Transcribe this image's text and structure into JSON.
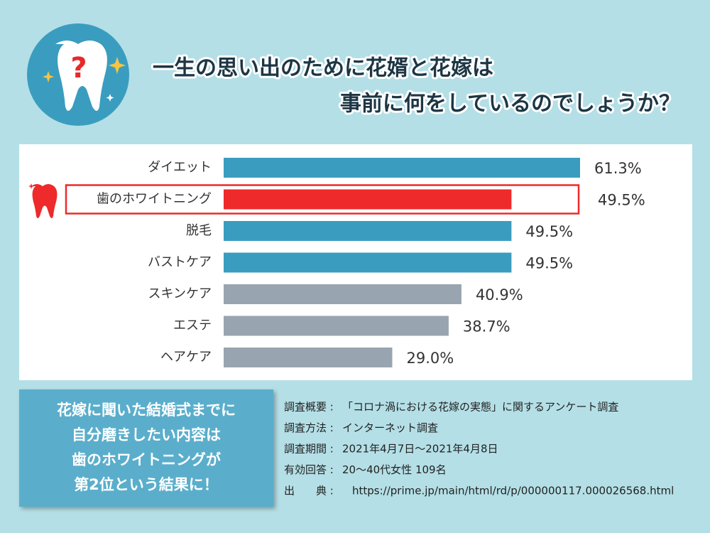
{
  "chart_data": {
    "type": "bar",
    "orientation": "horizontal",
    "title": [
      "一生の思い出のために花婿と花嫁は",
      "事前に何をしているのでしょうか？"
    ],
    "categories": [
      "ダイエット",
      "歯のホワイトニング",
      "脱毛",
      "バストケア",
      "スキンケア",
      "エステ",
      "ヘアケア"
    ],
    "values": [
      61.3,
      49.5,
      49.5,
      49.5,
      40.9,
      38.7,
      29.0
    ],
    "value_labels": [
      "61.3%",
      "49.5%",
      "49.5%",
      "49.5%",
      "40.9%",
      "38.7%",
      "29.0%"
    ],
    "colors": [
      "#3a9dbf",
      "#ee2a2a",
      "#3a9dbf",
      "#3a9dbf",
      "#98a5b0",
      "#98a5b0",
      "#98a5b0"
    ],
    "highlight": 1
  },
  "summary": [
    "花嫁に聞いた結婚式までに",
    "自分磨きしたい内容は",
    "歯のホワイトニングが",
    "第2位という結果に！"
  ],
  "notes": [
    {
      "label": "調査概要 :",
      "text": "「コロナ渦における花嫁の実態」に関するアンケート調査"
    },
    {
      "label": "調査方法 :",
      "text": "インターネット調査"
    },
    {
      "label": "調査期間 :",
      "text": "2021年4月7日〜2021年4月8日"
    },
    {
      "label": "有効回答 :",
      "text": "20〜40代女性 109名"
    },
    {
      "label": "出　　典 :",
      "text": "https://prime.jp/main/html/rd/p/000000117.000026568.html"
    }
  ]
}
